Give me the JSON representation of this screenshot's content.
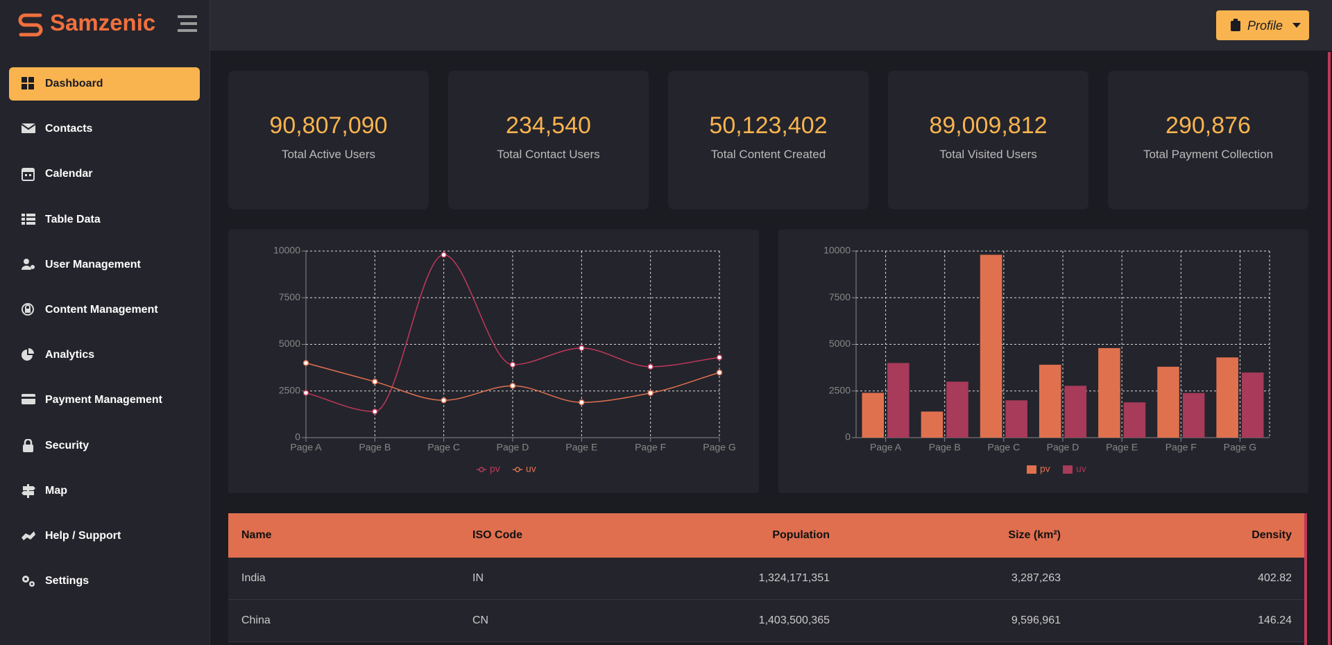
{
  "brand": "Samzenic",
  "profile": "Profile",
  "nav": [
    "Dashboard",
    "Contacts",
    "Calendar",
    "Table Data",
    "User Management",
    "Content Management",
    "Analytics",
    "Payment Management",
    "Security",
    "Map",
    "Help / Support",
    "Settings"
  ],
  "stats": [
    {
      "value": "90,807,090",
      "label": "Total Active Users"
    },
    {
      "value": "234,540",
      "label": "Total Contact Users"
    },
    {
      "value": "50,123,402",
      "label": "Total Content Created"
    },
    {
      "value": "89,009,812",
      "label": "Total Visited Users"
    },
    {
      "value": "290,876",
      "label": "Total Payment Collection"
    }
  ],
  "chart_data": [
    {
      "type": "line",
      "categories": [
        "Page A",
        "Page B",
        "Page C",
        "Page D",
        "Page E",
        "Page F",
        "Page G"
      ],
      "series": [
        {
          "name": "pv",
          "color": "#c0395a",
          "values": [
            2400,
            1398,
            9800,
            3908,
            4800,
            3800,
            4300
          ]
        },
        {
          "name": "uv",
          "color": "#e0714f",
          "values": [
            4000,
            3000,
            2000,
            2780,
            1890,
            2390,
            3490
          ]
        }
      ],
      "ylim": [
        0,
        10000
      ],
      "yticks": [
        0,
        2500,
        5000,
        7500,
        10000
      ],
      "grid": true
    },
    {
      "type": "bar",
      "categories": [
        "Page A",
        "Page B",
        "Page C",
        "Page D",
        "Page E",
        "Page F",
        "Page G"
      ],
      "series": [
        {
          "name": "pv",
          "color": "#e0714f",
          "values": [
            2400,
            1398,
            9800,
            3908,
            4800,
            3800,
            4300
          ]
        },
        {
          "name": "uv",
          "color": "#a83a5a",
          "values": [
            4000,
            3000,
            2000,
            2780,
            1890,
            2390,
            3490
          ]
        }
      ],
      "ylim": [
        0,
        10000
      ],
      "yticks": [
        0,
        2500,
        5000,
        7500,
        10000
      ],
      "grid": true
    }
  ],
  "table": {
    "columns": [
      "Name",
      "ISO Code",
      "Population",
      "Size (km²)",
      "Density"
    ],
    "rows": [
      [
        "India",
        "IN",
        "1,324,171,351",
        "3,287,263",
        "402.82"
      ],
      [
        "China",
        "CN",
        "1,403,500,365",
        "9,596,961",
        "146.24"
      ]
    ]
  }
}
